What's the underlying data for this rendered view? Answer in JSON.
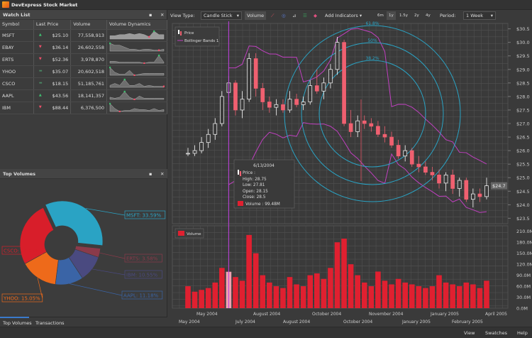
{
  "app": {
    "title": "DevExpress Stock Market"
  },
  "watchlist": {
    "title": "Watch List",
    "columns": [
      "Symbol",
      "Last Price",
      "Volume",
      "Volume Dynamics"
    ],
    "rows": [
      {
        "symbol": "MSFT",
        "trend": "up",
        "price": "$25.10",
        "volume": "77,558,913",
        "spark": [
          3,
          3,
          4,
          4,
          5,
          4,
          5,
          4,
          2,
          7,
          4,
          4
        ]
      },
      {
        "symbol": "EBAY",
        "trend": "down",
        "price": "$36.14",
        "volume": "26,602,558",
        "spark": [
          8,
          6,
          6,
          4,
          2,
          2,
          1,
          2,
          2,
          1,
          1,
          2
        ]
      },
      {
        "symbol": "ERTS",
        "trend": "down",
        "price": "$52.36",
        "volume": "3,978,870",
        "spark": [
          2,
          2,
          1,
          1,
          1,
          1,
          1,
          0,
          1,
          1,
          8,
          1
        ]
      },
      {
        "symbol": "YHOO",
        "trend": "flat",
        "price": "$35.07",
        "volume": "20,602,518",
        "spark": [
          8,
          3,
          1,
          1,
          5,
          0,
          1,
          2,
          2,
          2,
          2,
          2
        ]
      },
      {
        "symbol": "CSCO",
        "trend": "flat",
        "price": "$18.15",
        "volume": "51,185,761",
        "spark": [
          2,
          4,
          2,
          8,
          2,
          2,
          4,
          1,
          2,
          1,
          1,
          1
        ]
      },
      {
        "symbol": "AAPL",
        "trend": "up",
        "price": "$43.56",
        "volume": "18,141,357",
        "spark": [
          2,
          1,
          2,
          7,
          2,
          0,
          3,
          1,
          1,
          1,
          1,
          1
        ]
      },
      {
        "symbol": "IBM",
        "trend": "down",
        "price": "$88.44",
        "volume": "6,376,500",
        "spark": [
          8,
          3,
          0,
          1,
          1,
          3,
          2,
          2,
          1,
          3,
          1,
          2
        ]
      }
    ]
  },
  "topvolumes": {
    "title": "Top Volumes",
    "slices": [
      {
        "name": "MSFT",
        "value": 33.59,
        "label": "MSFT: 33.59%",
        "color": "#2aa3c4"
      },
      {
        "name": "ERTS",
        "value": 3.58,
        "label": "ERTS: 3.58%",
        "color": "#8b3a4a"
      },
      {
        "name": "IBM",
        "value": 10.55,
        "label": "IBM: 10.55%",
        "color": "#4a4a80"
      },
      {
        "name": "AAPL",
        "value": 11.18,
        "label": "AAPL: 11.18%",
        "color": "#3a64a6"
      },
      {
        "name": "YHOO",
        "value": 15.05,
        "label": "YHOO: 15.05%",
        "color": "#ee6a1a"
      },
      {
        "name": "CSCO",
        "value": 26.05,
        "label": "CSCO: 26.05%",
        "color": "#d81e2a"
      }
    ]
  },
  "left_tabs": [
    "Top Volumes",
    "Transactions"
  ],
  "status": [
    "View",
    "Swatches",
    "Help"
  ],
  "toolbar": {
    "view_type_label": "View Type:",
    "view_type": "Candle Stick",
    "volume": "Volume",
    "add_indicators": "Add Indicators",
    "ranges": [
      "6m",
      "1y",
      "1.5y",
      "2y",
      "4y"
    ],
    "selected_range": "1y",
    "period_label": "Period:",
    "period": "1 Week"
  },
  "chart_data": {
    "type": "candlestick",
    "legend": [
      "Price",
      "Bollinger Bands 1"
    ],
    "volume_legend": "Volume",
    "price_ticks": [
      "$30.5",
      "$30.0",
      "$29.5",
      "$29.0",
      "$28.5",
      "$28.0",
      "$27.5",
      "$27.0",
      "$26.5",
      "$26.0",
      "$25.5",
      "$25.0",
      "$24.5",
      "$24.0",
      "$23.5"
    ],
    "price_range": [
      23.3,
      30.7
    ],
    "current_price": "$24.7",
    "volume_ticks": [
      "210.0M",
      "180.0M",
      "150.0M",
      "120.0M",
      "90.0M",
      "60.0M",
      "30.0M",
      "0.0M"
    ],
    "fib_levels": [
      "61.8%",
      "50%",
      "38.2%"
    ],
    "date_labels_row1": [
      "May 2004",
      "August 2004",
      "October 2004",
      "November 2004",
      "January 2005",
      "April 2005"
    ],
    "date_labels_row2": [
      "May 2004",
      "July 2004",
      "August 2004",
      "October 2004",
      "January 2005",
      "February 2005"
    ],
    "tooltip": {
      "date": "6/13/2004",
      "price": "Price :",
      "high": "High: 28.75",
      "low": "Low: 27.81",
      "open": "Open: 28.15",
      "close": "Close: 28.5",
      "volume": "Volume : 99.48M"
    },
    "candles_ohlcv_M": [
      [
        25.9,
        26.1,
        25.8,
        25.9,
        60
      ],
      [
        25.9,
        26.2,
        25.8,
        26.0,
        45
      ],
      [
        26.0,
        26.5,
        25.9,
        26.3,
        50
      ],
      [
        26.3,
        26.8,
        26.1,
        26.6,
        55
      ],
      [
        26.6,
        27.2,
        26.4,
        27.0,
        70
      ],
      [
        27.0,
        28.2,
        26.9,
        28.0,
        110
      ],
      [
        28.15,
        28.75,
        27.81,
        28.5,
        99.48
      ],
      [
        28.5,
        28.6,
        27.3,
        27.5,
        85
      ],
      [
        27.5,
        28.2,
        27.2,
        27.9,
        75
      ],
      [
        27.9,
        29.6,
        27.8,
        29.4,
        200
      ],
      [
        29.4,
        29.6,
        28.0,
        28.3,
        150
      ],
      [
        28.3,
        28.5,
        27.5,
        27.8,
        90
      ],
      [
        27.8,
        28.0,
        27.4,
        27.6,
        70
      ],
      [
        27.6,
        27.9,
        27.3,
        27.7,
        60
      ],
      [
        27.7,
        27.9,
        27.4,
        27.5,
        55
      ],
      [
        27.5,
        28.2,
        27.4,
        27.9,
        85
      ],
      [
        27.9,
        28.1,
        27.6,
        27.7,
        65
      ],
      [
        27.7,
        28.0,
        27.5,
        27.8,
        60
      ],
      [
        27.8,
        28.6,
        27.7,
        28.4,
        90
      ],
      [
        28.4,
        29.0,
        28.1,
        28.2,
        95
      ],
      [
        28.2,
        28.7,
        27.9,
        28.5,
        80
      ],
      [
        28.5,
        29.2,
        28.3,
        29.0,
        110
      ],
      [
        29.0,
        30.2,
        28.8,
        30.0,
        180
      ],
      [
        30.0,
        30.1,
        26.9,
        27.0,
        190
      ],
      [
        27.0,
        27.5,
        26.5,
        26.7,
        120
      ],
      [
        26.7,
        27.3,
        26.5,
        27.1,
        90
      ],
      [
        27.1,
        27.3,
        26.8,
        27.0,
        70
      ],
      [
        27.0,
        27.2,
        26.7,
        26.9,
        60
      ],
      [
        26.9,
        27.1,
        26.5,
        26.6,
        100
      ],
      [
        26.6,
        26.9,
        26.3,
        26.5,
        75
      ],
      [
        26.5,
        26.7,
        26.1,
        26.2,
        65
      ],
      [
        26.2,
        26.4,
        25.7,
        25.8,
        80
      ],
      [
        25.8,
        26.2,
        25.6,
        26.0,
        70
      ],
      [
        26.0,
        26.1,
        25.4,
        25.5,
        65
      ],
      [
        25.5,
        25.8,
        25.2,
        25.4,
        60
      ],
      [
        25.4,
        25.6,
        25.1,
        25.2,
        55
      ],
      [
        25.2,
        25.4,
        24.9,
        25.1,
        60
      ],
      [
        25.1,
        25.3,
        24.6,
        24.8,
        90
      ],
      [
        24.8,
        25.2,
        24.5,
        25.1,
        70
      ],
      [
        25.1,
        25.3,
        24.4,
        24.6,
        65
      ],
      [
        24.6,
        25.0,
        24.3,
        24.9,
        60
      ],
      [
        24.9,
        25.0,
        24.1,
        24.2,
        70
      ],
      [
        24.2,
        24.6,
        23.9,
        24.4,
        65
      ],
      [
        24.4,
        24.6,
        24.1,
        24.3,
        55
      ],
      [
        24.3,
        25.0,
        24.2,
        24.7,
        75
      ]
    ],
    "colors": {
      "rising": "#ffffff",
      "falling": "#f06070",
      "volume": "#e02030",
      "bollinger": "#c040c0",
      "fibonacci": "#2aa3c4",
      "crosshair": "#c040e0"
    }
  }
}
